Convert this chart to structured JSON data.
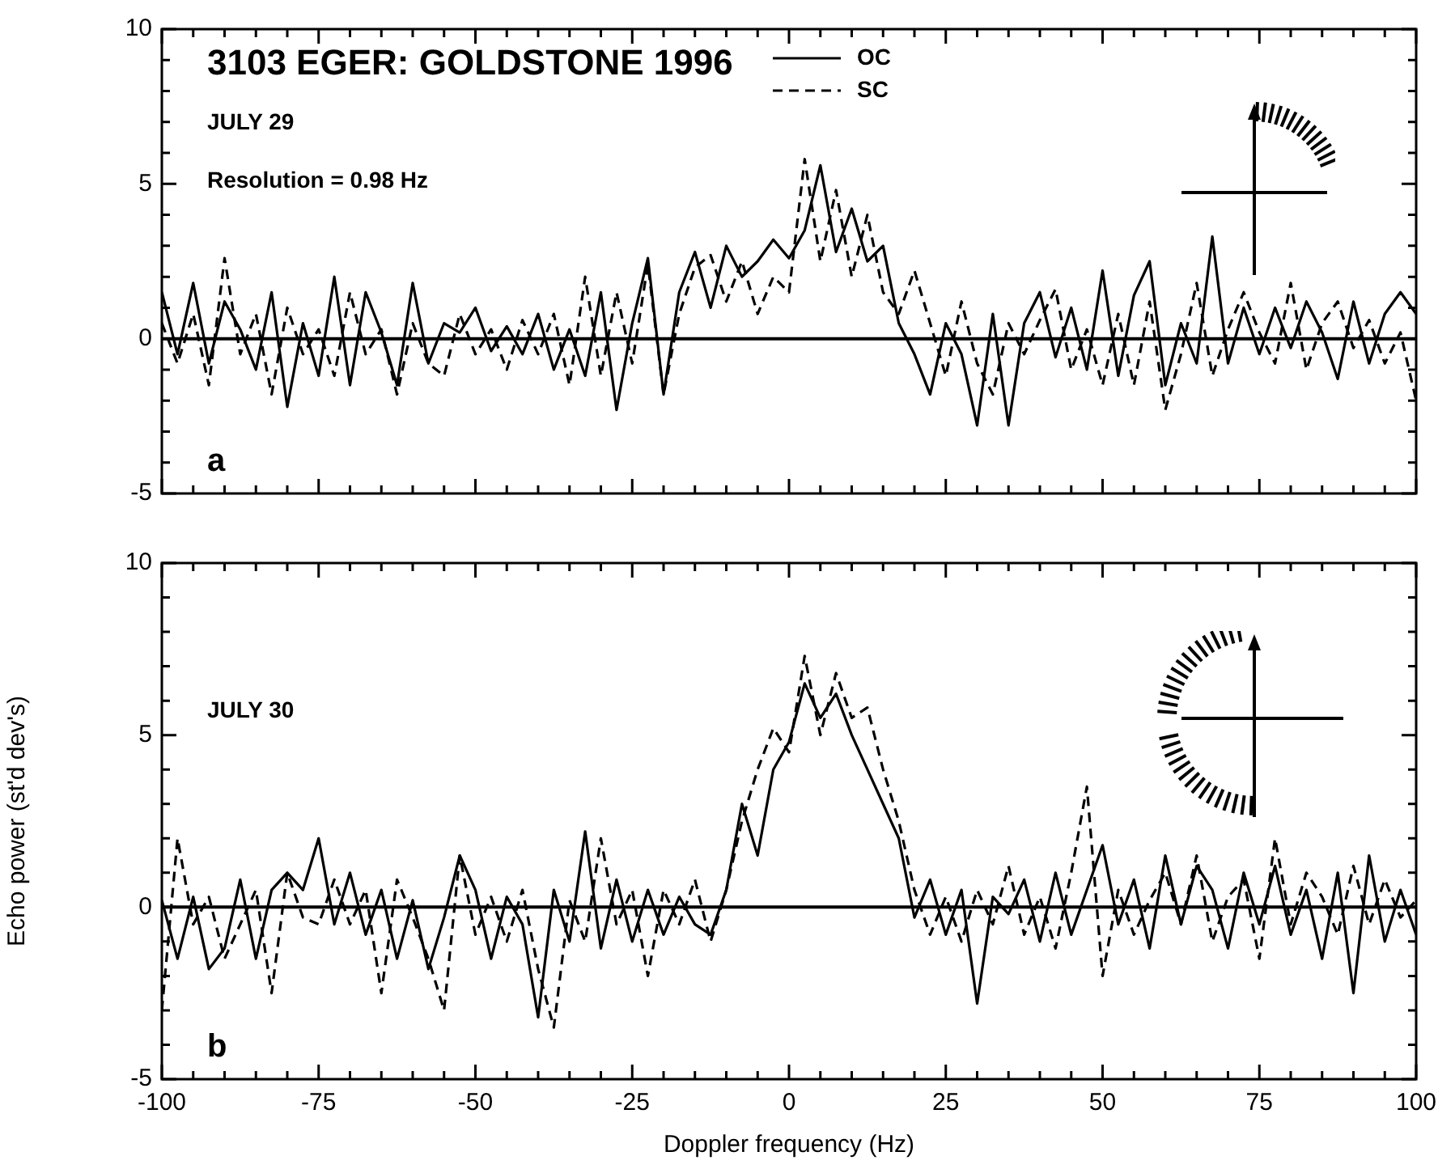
{
  "chart_data": [
    {
      "type": "line",
      "title": "3103 EGER: GOLDSTONE 1996",
      "annotations": [
        "JULY 29",
        "Resolution = 0.98 Hz",
        "a"
      ],
      "legend": "top",
      "tick_labels": "y",
      "xlim": [
        -100,
        100
      ],
      "xticks": [
        -100,
        {
          "value": -95,
          "label": null
        },
        {
          "value": -90,
          "label": null
        },
        {
          "value": -85,
          "label": null
        },
        {
          "value": -80,
          "label": null
        },
        -75,
        {
          "value": -70,
          "label": null
        },
        {
          "value": -65,
          "label": null
        },
        {
          "value": -60,
          "label": null
        },
        {
          "value": -55,
          "label": null
        },
        -50,
        {
          "value": -45,
          "label": null
        },
        {
          "value": -40,
          "label": null
        },
        {
          "value": -35,
          "label": null
        },
        {
          "value": -30,
          "label": null
        },
        -25,
        {
          "value": -20,
          "label": null
        },
        {
          "value": -15,
          "label": null
        },
        {
          "value": -10,
          "label": null
        },
        {
          "value": -5,
          "label": null
        },
        0,
        {
          "value": 5,
          "label": null
        },
        {
          "value": 10,
          "label": null
        },
        {
          "value": 15,
          "label": null
        },
        {
          "value": 20,
          "label": null
        },
        25,
        {
          "value": 30,
          "label": null
        },
        {
          "value": 35,
          "label": null
        },
        {
          "value": 40,
          "label": null
        },
        {
          "value": 45,
          "label": null
        },
        50,
        {
          "value": 55,
          "label": null
        },
        {
          "value": 60,
          "label": null
        },
        {
          "value": 65,
          "label": null
        },
        {
          "value": 70,
          "label": null
        },
        75,
        {
          "value": 80,
          "label": null
        },
        {
          "value": 85,
          "label": null
        },
        {
          "value": 90,
          "label": null
        },
        {
          "value": 95,
          "label": null
        },
        100
      ],
      "ylim": [
        -5,
        10
      ],
      "yticks": [
        -5,
        {
          "value": -4,
          "label": null
        },
        {
          "value": -3,
          "label": null
        },
        {
          "value": -2,
          "label": null
        },
        {
          "value": -1,
          "label": null
        },
        0,
        {
          "value": 1,
          "label": null
        },
        {
          "value": 2,
          "label": null
        },
        {
          "value": 3,
          "label": null
        },
        {
          "value": 4,
          "label": null
        },
        5,
        {
          "value": 6,
          "label": null
        },
        {
          "value": 7,
          "label": null
        },
        {
          "value": 8,
          "label": null
        },
        {
          "value": 9,
          "label": null
        },
        10
      ],
      "ref_lines": [
        {
          "axis": "y",
          "value": 0,
          "color": "#000000"
        }
      ],
      "x": [
        -100,
        -97.5,
        -95,
        -92.5,
        -90,
        -87.5,
        -85,
        -82.5,
        -80,
        -77.5,
        -75,
        -72.5,
        -70,
        -67.5,
        -65,
        -62.5,
        -60,
        -57.5,
        -55,
        -52.5,
        -50,
        -47.5,
        -45,
        -42.5,
        -40,
        -37.5,
        -35,
        -32.5,
        -30,
        -27.5,
        -25,
        -22.5,
        -20,
        -17.5,
        -15,
        -12.5,
        -10,
        -7.5,
        -5,
        -2.5,
        0,
        2.5,
        5,
        7.5,
        10,
        12.5,
        15,
        17.5,
        20,
        22.5,
        25,
        27.5,
        30,
        32.5,
        35,
        37.5,
        40,
        42.5,
        45,
        47.5,
        50,
        52.5,
        55,
        57.5,
        60,
        62.5,
        65,
        67.5,
        70,
        72.5,
        75,
        77.5,
        80,
        82.5,
        85,
        87.5,
        90,
        92.5,
        95,
        97.5,
        100
      ],
      "series": [
        {
          "name": "OC",
          "color": "#000000",
          "line_style": "solid",
          "values": [
            1.5,
            -0.5,
            1.8,
            -0.8,
            1.2,
            0.3,
            -1.0,
            1.5,
            -2.2,
            0.5,
            -1.2,
            2.0,
            -1.5,
            1.5,
            0.2,
            -1.5,
            1.8,
            -0.8,
            0.5,
            0.2,
            1.0,
            -0.4,
            0.4,
            -0.5,
            0.8,
            -1.0,
            0.3,
            -1.2,
            1.5,
            -2.3,
            0.5,
            2.6,
            -1.8,
            1.5,
            2.8,
            1.0,
            3.0,
            2.0,
            2.5,
            3.2,
            2.6,
            3.5,
            5.6,
            2.8,
            4.2,
            2.5,
            3.0,
            0.5,
            -0.5,
            -1.8,
            0.5,
            -0.5,
            -2.8,
            0.8,
            -2.8,
            0.5,
            1.5,
            -0.6,
            1.0,
            -1.0,
            2.2,
            -1.2,
            1.4,
            2.5,
            -1.5,
            0.5,
            -0.8,
            3.3,
            -0.8,
            1.0,
            -0.5,
            1.0,
            -0.3,
            1.2,
            0.2,
            -1.3,
            1.2,
            -0.8,
            0.8,
            1.5,
            0.8
          ]
        },
        {
          "name": "SC",
          "color": "#000000",
          "line_style": "dashed",
          "values": [
            0.5,
            -0.8,
            0.8,
            -1.5,
            2.6,
            -0.5,
            0.8,
            -1.8,
            1.0,
            -0.5,
            0.3,
            -1.2,
            1.5,
            -0.5,
            0.3,
            -1.8,
            0.5,
            -0.8,
            -1.2,
            0.8,
            -0.5,
            0.3,
            -1.0,
            0.6,
            -0.5,
            0.8,
            -1.5,
            2.0,
            -1.2,
            1.5,
            -0.8,
            2.4,
            -1.8,
            0.8,
            2.3,
            2.7,
            1.2,
            2.5,
            0.8,
            2.0,
            1.5,
            5.8,
            2.5,
            4.8,
            2.0,
            4.0,
            1.5,
            0.8,
            2.2,
            0.5,
            -1.2,
            1.2,
            -0.8,
            -1.8,
            0.5,
            -0.5,
            0.6,
            1.6,
            -1.0,
            0.3,
            -1.5,
            0.8,
            -1.5,
            1.2,
            -2.3,
            -0.5,
            1.8,
            -1.2,
            0.3,
            1.5,
            0.2,
            -0.8,
            1.8,
            -1.0,
            0.5,
            1.2,
            -0.3,
            0.6,
            -0.8,
            0.2,
            -2.0
          ]
        }
      ]
    },
    {
      "type": "line",
      "xlabel": "Doppler frequency (Hz)",
      "ylabel": "Echo power (st'd dev's)",
      "annotations": [
        "JULY 30",
        "b"
      ],
      "xlim": [
        -100,
        100
      ],
      "xticks": [
        -100,
        {
          "value": -95,
          "label": null
        },
        {
          "value": -90,
          "label": null
        },
        {
          "value": -85,
          "label": null
        },
        {
          "value": -80,
          "label": null
        },
        -75,
        {
          "value": -70,
          "label": null
        },
        {
          "value": -65,
          "label": null
        },
        {
          "value": -60,
          "label": null
        },
        {
          "value": -55,
          "label": null
        },
        -50,
        {
          "value": -45,
          "label": null
        },
        {
          "value": -40,
          "label": null
        },
        {
          "value": -35,
          "label": null
        },
        {
          "value": -30,
          "label": null
        },
        -25,
        {
          "value": -20,
          "label": null
        },
        {
          "value": -15,
          "label": null
        },
        {
          "value": -10,
          "label": null
        },
        {
          "value": -5,
          "label": null
        },
        0,
        {
          "value": 5,
          "label": null
        },
        {
          "value": 10,
          "label": null
        },
        {
          "value": 15,
          "label": null
        },
        {
          "value": 20,
          "label": null
        },
        25,
        {
          "value": 30,
          "label": null
        },
        {
          "value": 35,
          "label": null
        },
        {
          "value": 40,
          "label": null
        },
        {
          "value": 45,
          "label": null
        },
        50,
        {
          "value": 55,
          "label": null
        },
        {
          "value": 60,
          "label": null
        },
        {
          "value": 65,
          "label": null
        },
        {
          "value": 70,
          "label": null
        },
        75,
        {
          "value": 80,
          "label": null
        },
        {
          "value": 85,
          "label": null
        },
        {
          "value": 90,
          "label": null
        },
        {
          "value": 95,
          "label": null
        },
        100
      ],
      "ylim": [
        -5,
        10
      ],
      "yticks": [
        -5,
        {
          "value": -4,
          "label": null
        },
        {
          "value": -3,
          "label": null
        },
        {
          "value": -2,
          "label": null
        },
        {
          "value": -1,
          "label": null
        },
        0,
        {
          "value": 1,
          "label": null
        },
        {
          "value": 2,
          "label": null
        },
        {
          "value": 3,
          "label": null
        },
        {
          "value": 4,
          "label": null
        },
        5,
        {
          "value": 6,
          "label": null
        },
        {
          "value": 7,
          "label": null
        },
        {
          "value": 8,
          "label": null
        },
        {
          "value": 9,
          "label": null
        },
        10
      ],
      "ref_lines": [
        {
          "axis": "y",
          "value": 0,
          "color": "#000000"
        }
      ],
      "x": [
        -100,
        -97.5,
        -95,
        -92.5,
        -90,
        -87.5,
        -85,
        -82.5,
        -80,
        -77.5,
        -75,
        -72.5,
        -70,
        -67.5,
        -65,
        -62.5,
        -60,
        -57.5,
        -55,
        -52.5,
        -50,
        -47.5,
        -45,
        -42.5,
        -40,
        -37.5,
        -35,
        -32.5,
        -30,
        -27.5,
        -25,
        -22.5,
        -20,
        -17.5,
        -15,
        -12.5,
        -10,
        -7.5,
        -5,
        -2.5,
        0,
        2.5,
        5,
        7.5,
        10,
        12.5,
        15,
        17.5,
        20,
        22.5,
        25,
        27.5,
        30,
        32.5,
        35,
        37.5,
        40,
        42.5,
        45,
        47.5,
        50,
        52.5,
        55,
        57.5,
        60,
        62.5,
        65,
        67.5,
        70,
        72.5,
        75,
        77.5,
        80,
        82.5,
        85,
        87.5,
        90,
        92.5,
        95,
        97.5,
        100
      ],
      "series": [
        {
          "color": "#000000",
          "line_style": "solid",
          "values": [
            0.2,
            -1.5,
            0.3,
            -1.8,
            -1.2,
            0.8,
            -1.5,
            0.5,
            1.0,
            0.5,
            2.0,
            -0.5,
            1.0,
            -0.8,
            0.5,
            -1.5,
            0.2,
            -1.8,
            -0.3,
            1.5,
            0.5,
            -1.5,
            0.3,
            -0.5,
            -3.2,
            0.5,
            -1.0,
            2.2,
            -1.2,
            0.8,
            -1.0,
            0.5,
            -0.8,
            0.3,
            -0.5,
            -0.8,
            0.5,
            3.0,
            1.5,
            4.0,
            4.8,
            6.5,
            5.5,
            6.2,
            5.0,
            4.0,
            3.0,
            2.0,
            -0.3,
            0.8,
            -0.8,
            0.5,
            -2.8,
            0.3,
            -0.2,
            0.8,
            -1.0,
            1.0,
            -0.8,
            0.5,
            1.8,
            -0.5,
            0.8,
            -1.2,
            1.5,
            -0.5,
            1.2,
            0.5,
            -1.2,
            1.0,
            -0.5,
            1.2,
            -0.8,
            0.5,
            -1.5,
            1.0,
            -2.5,
            1.5,
            -1.0,
            0.5,
            -0.8
          ]
        },
        {
          "color": "#000000",
          "line_style": "dashed",
          "values": [
            -3.0,
            2.0,
            -0.5,
            0.3,
            -1.5,
            -0.5,
            0.5,
            -2.5,
            1.0,
            -0.3,
            -0.5,
            0.8,
            -0.5,
            0.5,
            -2.5,
            0.8,
            -0.3,
            -1.5,
            -3.0,
            1.5,
            -0.8,
            0.3,
            -1.0,
            0.5,
            -1.8,
            -3.5,
            0.2,
            -1.0,
            2.0,
            -0.5,
            0.5,
            -2.0,
            0.5,
            -0.5,
            0.8,
            -1.0,
            0.5,
            2.5,
            4.0,
            5.2,
            4.5,
            7.3,
            5.0,
            6.8,
            5.5,
            5.8,
            4.0,
            2.5,
            0.5,
            -0.8,
            0.3,
            -1.0,
            0.5,
            -0.5,
            1.2,
            -0.8,
            0.3,
            -1.2,
            1.0,
            3.5,
            -2.0,
            0.5,
            -0.8,
            0.2,
            1.0,
            -0.5,
            1.5,
            -1.0,
            0.3,
            0.8,
            -1.5,
            2.0,
            -0.5,
            1.0,
            0.3,
            -0.8,
            1.2,
            -0.5,
            0.8,
            -0.3,
            0.2
          ]
        }
      ]
    }
  ]
}
